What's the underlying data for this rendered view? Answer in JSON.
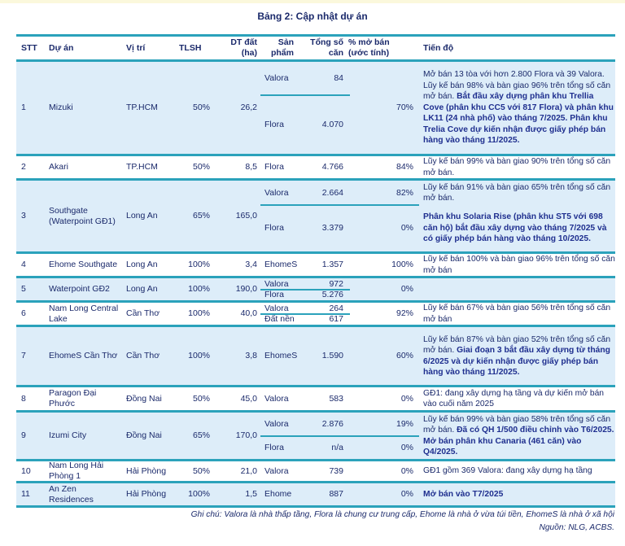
{
  "title": "Bảng 2: Cập nhật dự án",
  "headers": {
    "stt": "STT",
    "project": "Dự án",
    "location": "Vị trí",
    "tlsh": "TLSH",
    "area": "DT đất (ha)",
    "product": "Sản phẩm",
    "units": "Tổng số căn",
    "pct": "% mở bán (ước tính)",
    "progress": "Tiến độ"
  },
  "rows": [
    {
      "stt": "1",
      "name": "Mizuki",
      "loc": "TP.HCM",
      "tlsh": "50%",
      "area": "26,2",
      "products": [
        {
          "name": "Valora",
          "units": "84"
        },
        {
          "name": "Flora",
          "units": "4.070"
        }
      ],
      "pct": "70%",
      "progress": [
        [
          {
            "t": "Mở bán 13 tòa với hơn 2.800 Flora và 39 Valora.  Lũy kế bán 98% và bàn giao 96% trên tổng số căn mở bán. "
          },
          {
            "t": "Bắt đầu xây dựng phân khu Trellia Cove (phân khu CC5 với 817 Flora) và phân khu LK11 (24 nhà phố) vào tháng 7/2025. Phân khu Trelia Cove dự kiến nhận được giấy phép bán hàng vào tháng 11/2025.",
            "b": true
          }
        ]
      ]
    },
    {
      "stt": "2",
      "name": "Akari",
      "loc": "TP.HCM",
      "tlsh": "50%",
      "area": "8,5",
      "products": [
        {
          "name": "Flora",
          "units": "4.766"
        }
      ],
      "pct": "84%",
      "progress": [
        [
          {
            "t": "Lũy kế bán 99% và bàn giao 90% trên tổng số căn mở bán."
          }
        ]
      ]
    },
    {
      "stt": "3",
      "name": "Southgate (Waterpoint GĐ1)",
      "loc": "Long An",
      "tlsh": "65%",
      "area": "165,0",
      "products": [
        {
          "name": "Valora",
          "units": "2.664",
          "pct": "82%"
        },
        {
          "name": "Flora",
          "units": "3.379",
          "pct": "0%"
        }
      ],
      "progress": [
        [
          {
            "t": "Lũy kế bán 91% và bàn giao 65% trên tổng số căn mở bán."
          }
        ],
        [
          {
            "t": "Phân khu Solaria Rise (phân khu ST5 với 698 căn hộ)  bắt đầu xây dựng vào tháng 7/2025 và có giấy phép bán hàng vào tháng 10/2025.",
            "b": true
          }
        ]
      ]
    },
    {
      "stt": "4",
      "name": "Ehome Southgate",
      "loc": "Long An",
      "tlsh": "100%",
      "area": "3,4",
      "products": [
        {
          "name": "EhomeS",
          "units": "1.357"
        }
      ],
      "pct": "100%",
      "progress": [
        [
          {
            "t": "Lũy kế bán 100% và bàn giao 96% trên tổng số căn mở bán"
          }
        ]
      ]
    },
    {
      "stt": "5",
      "name": "Waterpoint GĐ2",
      "loc": "Long An",
      "tlsh": "100%",
      "area": "190,0",
      "products": [
        {
          "name": "Valora",
          "units": "972"
        },
        {
          "name": "Flora",
          "units": "5.276"
        }
      ],
      "pct": "0%",
      "progress": []
    },
    {
      "stt": "6",
      "name": "Nam Long Central Lake",
      "loc": "Cần Thơ",
      "tlsh": "100%",
      "area": "40,0",
      "products": [
        {
          "name": "Valora",
          "units": "264"
        },
        {
          "name": "Đất nền",
          "units": "617"
        }
      ],
      "pct": "92%",
      "progress": [
        [
          {
            "t": "Lũy kế bán 67% và bàn giao 56% trên tổng số căn mở bán"
          }
        ]
      ]
    },
    {
      "stt": "7",
      "name": "EhomeS Cần Thơ",
      "loc": "Cần Thơ",
      "tlsh": "100%",
      "area": "3,8",
      "products": [
        {
          "name": "EhomeS",
          "units": "1.590"
        }
      ],
      "pct": "60%",
      "progress": [
        [
          {
            "t": "Lũy kế bán 87% và bàn giao 52% trên tổng số căn mở bán. "
          },
          {
            "t": "Giai đoạn 3 bắt đầu xây dựng từ tháng 6/2025 và dự kiến nhận được giấy phép bán hàng vào tháng 11/2025.",
            "b": true
          }
        ]
      ]
    },
    {
      "stt": "8",
      "name": "Paragon Đại Phước",
      "loc": "Đồng Nai",
      "tlsh": "50%",
      "area": "45,0",
      "products": [
        {
          "name": "Valora",
          "units": "583"
        }
      ],
      "pct": "0%",
      "progress": [
        [
          {
            "t": "GĐ1: đang xây dựng hạ tầng và dự kiến mở bán vào cuối năm 2025"
          }
        ]
      ]
    },
    {
      "stt": "9",
      "name": "Izumi City",
      "loc": "Đồng Nai",
      "tlsh": "65%",
      "area": "170,0",
      "products": [
        {
          "name": "Valora",
          "units": "2.876",
          "pct": "19%"
        },
        {
          "name": "Flora",
          "units": "n/a",
          "pct": "0%"
        }
      ],
      "progress": [
        [
          {
            "t": "Lũy kế bán 99% và bàn giao 58% trên tổng số căn mở bán. "
          },
          {
            "t": "Đã có QH 1/500 điều chỉnh vào T6/2025. Mở bán phân khu Canaria (461 căn) vào Q4/2025.",
            "b": true
          }
        ]
      ]
    },
    {
      "stt": "10",
      "name": "Nam Long Hải Phòng 1",
      "loc": "Hải Phòng",
      "tlsh": "50%",
      "area": "21,0",
      "products": [
        {
          "name": "Valora",
          "units": "739"
        }
      ],
      "pct": "0%",
      "progress": [
        [
          {
            "t": "GĐ1 gồm 369 Valora: đang xây dựng hạ tầng"
          }
        ]
      ]
    },
    {
      "stt": "11",
      "name": "An Zen Residences",
      "loc": "Hải Phòng",
      "tlsh": "100%",
      "area": "1,5",
      "products": [
        {
          "name": "Ehome",
          "units": "887"
        }
      ],
      "pct": "0%",
      "progress": [
        [
          {
            "t": "Mở bán vào T7/2025",
            "b": true
          }
        ]
      ]
    }
  ],
  "note": "Ghi chú: Valora là nhà thấp tầng, Flora là chung cư trung cấp, Ehome là nhà ở vừa túi tiền, EhomeS là nhà ở xã hội",
  "source": "Nguồn: NLG, ACBS."
}
